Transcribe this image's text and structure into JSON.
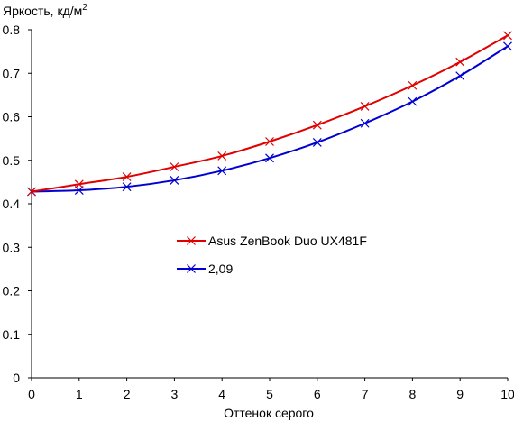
{
  "chart_data": {
    "type": "line",
    "title": "",
    "ylabel": "Яркость, кд/м",
    "ylabel_superscript": "2",
    "xlabel": "Оттенок серого",
    "xlim": [
      0,
      10
    ],
    "ylim": [
      0,
      0.8
    ],
    "x_ticks": [
      "0",
      "1",
      "2",
      "3",
      "4",
      "5",
      "6",
      "7",
      "8",
      "9",
      "10"
    ],
    "y_ticks": [
      "0",
      "0.1",
      "0.2",
      "0.3",
      "0.4",
      "0.5",
      "0.6",
      "0.7",
      "0.8"
    ],
    "grid": false,
    "legend_position": "center",
    "x": [
      0,
      1,
      2,
      3,
      4,
      5,
      6,
      7,
      8,
      9,
      10
    ],
    "series": [
      {
        "name": "Asus ZenBook Duo UX481F",
        "color": "#e00000",
        "marker": "x",
        "values": [
          0.428,
          0.445,
          0.462,
          0.485,
          0.51,
          0.543,
          0.581,
          0.624,
          0.672,
          0.726,
          0.787
        ]
      },
      {
        "name": "2,09",
        "color": "#0000d0",
        "marker": "x",
        "values": [
          0.428,
          0.431,
          0.439,
          0.454,
          0.476,
          0.505,
          0.541,
          0.585,
          0.635,
          0.694,
          0.762
        ]
      }
    ]
  }
}
